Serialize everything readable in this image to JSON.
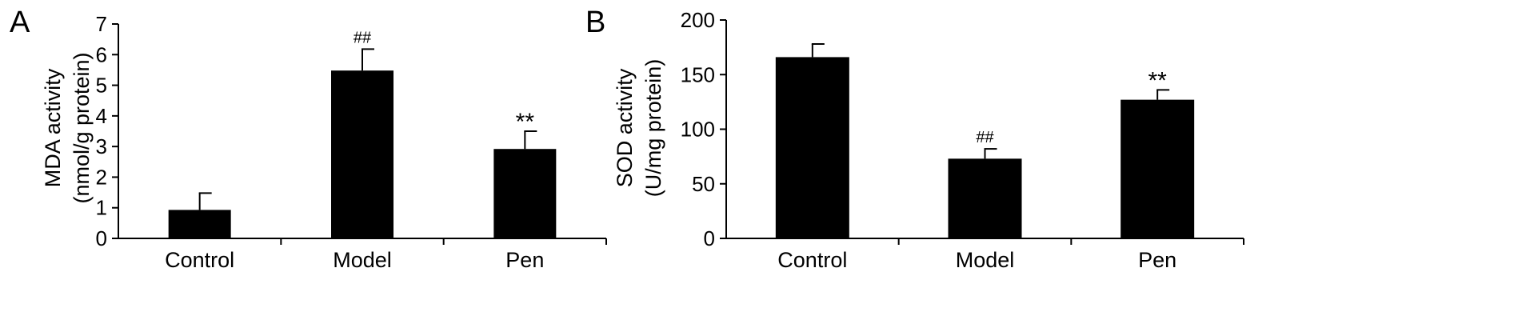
{
  "chart_data": [
    {
      "panel_label": "A",
      "type": "bar",
      "categories": [
        "Control",
        "Model",
        "Pen"
      ],
      "values": [
        0.93,
        5.48,
        2.92
      ],
      "errors": [
        0.55,
        0.7,
        0.58
      ],
      "annotations": [
        "",
        "##",
        "**"
      ],
      "ylabel_line1": "MDA activity",
      "ylabel_line2": "(nmol/g protein)",
      "ylim": [
        0,
        7
      ],
      "yticks": [
        0,
        1,
        2,
        3,
        4,
        5,
        6,
        7
      ],
      "grid": false,
      "bar_color": "#000000"
    },
    {
      "panel_label": "B",
      "type": "bar",
      "categories": [
        "Control",
        "Model",
        "Pen"
      ],
      "values": [
        166,
        73,
        127
      ],
      "errors": [
        12,
        9,
        9
      ],
      "annotations": [
        "",
        "##",
        "**"
      ],
      "ylabel_line1": "SOD activity",
      "ylabel_line2": "(U/mg protein)",
      "ylim": [
        0,
        200
      ],
      "yticks": [
        0,
        50,
        100,
        150,
        200
      ],
      "grid": false,
      "bar_color": "#000000"
    }
  ]
}
